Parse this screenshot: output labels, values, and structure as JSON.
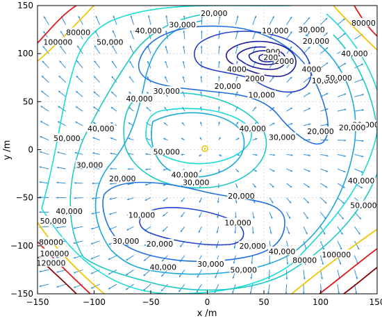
{
  "chart_data": {
    "type": "contour",
    "title": "",
    "xlabel": "x /m",
    "ylabel": "y /m",
    "xlim": [
      -150,
      150
    ],
    "ylim": [
      -150,
      150
    ],
    "xticks": [
      "−150",
      "−100",
      "−50",
      "0",
      "50",
      "100",
      "150"
    ],
    "yticks": [
      "150",
      "100",
      "50",
      "0",
      "−50",
      "−100",
      "−150"
    ],
    "grid": true,
    "colors": {
      "c2000": "#1a1aa0",
      "c10000": "#1f3fd0",
      "c20000": "#1f6fe0",
      "c30000": "#1aa8d8",
      "c40000": "#19c9c0",
      "c50000": "#18dcd8",
      "c80000": "#f2c400",
      "c100000": "#e01a1a",
      "arrow": "#2f8fd8",
      "marker": "#f0c000"
    },
    "contour_labels": [
      {
        "text": "20,000",
        "x": 6,
        "y": 142
      },
      {
        "text": "10,000",
        "x": 60,
        "y": 124
      },
      {
        "text": "4000",
        "x": 92,
        "y": 84
      },
      {
        "text": "2000",
        "x": 68,
        "y": 92
      },
      {
        "text": "900",
        "x": 58,
        "y": 102
      },
      {
        "text": "200",
        "x": 56,
        "y": 96
      },
      {
        "text": "4000",
        "x": 26,
        "y": 84
      },
      {
        "text": "2000",
        "x": 42,
        "y": 74
      },
      {
        "text": "20,000",
        "x": 18,
        "y": 66
      },
      {
        "text": "10,000",
        "x": 48,
        "y": 57
      },
      {
        "text": "30,000",
        "x": 92,
        "y": 125
      },
      {
        "text": "20,000",
        "x": 96,
        "y": 113
      },
      {
        "text": "10,000",
        "x": 104,
        "y": 72
      },
      {
        "text": "30,000",
        "x": -22,
        "y": 130
      },
      {
        "text": "40,000",
        "x": -52,
        "y": 124
      },
      {
        "text": "50,000",
        "x": -86,
        "y": 112
      },
      {
        "text": "80000",
        "x": -114,
        "y": 122
      },
      {
        "text": "100000",
        "x": -132,
        "y": 112
      },
      {
        "text": "40,000",
        "x": -60,
        "y": 53
      },
      {
        "text": "30,000",
        "x": -36,
        "y": 61
      },
      {
        "text": "40,000",
        "x": -94,
        "y": 22
      },
      {
        "text": "50,000",
        "x": -124,
        "y": 12
      },
      {
        "text": "40,000",
        "x": 40,
        "y": 22
      },
      {
        "text": "50,000",
        "x": -36,
        "y": -2
      },
      {
        "text": "30,000",
        "x": 66,
        "y": 13
      },
      {
        "text": "20,000",
        "x": 100,
        "y": 19
      },
      {
        "text": "50,000",
        "x": 116,
        "y": 75
      },
      {
        "text": "40,000",
        "x": 130,
        "y": 100
      },
      {
        "text": "30,000",
        "x": 140,
        "y": 26
      },
      {
        "text": "20,000",
        "x": 128,
        "y": 23
      },
      {
        "text": "80000",
        "x": 138,
        "y": 132
      },
      {
        "text": "30,000",
        "x": -104,
        "y": -16
      },
      {
        "text": "20,000",
        "x": -75,
        "y": -30
      },
      {
        "text": "40,000",
        "x": -20,
        "y": -26
      },
      {
        "text": "30,000",
        "x": -10,
        "y": -34
      },
      {
        "text": "20,000",
        "x": 30,
        "y": -48
      },
      {
        "text": "10,000",
        "x": -58,
        "y": -68
      },
      {
        "text": "10,000",
        "x": 27,
        "y": -76
      },
      {
        "text": "40,000",
        "x": 136,
        "y": -32
      },
      {
        "text": "50,000",
        "x": 138,
        "y": -58
      },
      {
        "text": "40,000",
        "x": -122,
        "y": -64
      },
      {
        "text": "50,000",
        "x": -136,
        "y": -74
      },
      {
        "text": "30,000",
        "x": -72,
        "y": -95
      },
      {
        "text": "20,000",
        "x": -42,
        "y": -98
      },
      {
        "text": "80000",
        "x": -138,
        "y": -96
      },
      {
        "text": "100000",
        "x": -135,
        "y": -108
      },
      {
        "text": "120000",
        "x": -138,
        "y": -118
      },
      {
        "text": "40,000",
        "x": -39,
        "y": -122
      },
      {
        "text": "30,000",
        "x": 3,
        "y": -119
      },
      {
        "text": "20,000",
        "x": 40,
        "y": -100
      },
      {
        "text": "40,000",
        "x": 66,
        "y": -106
      },
      {
        "text": "50,000",
        "x": 32,
        "y": -125
      },
      {
        "text": "80000",
        "x": 86,
        "y": -115
      },
      {
        "text": "100000",
        "x": 114,
        "y": -109
      }
    ]
  }
}
